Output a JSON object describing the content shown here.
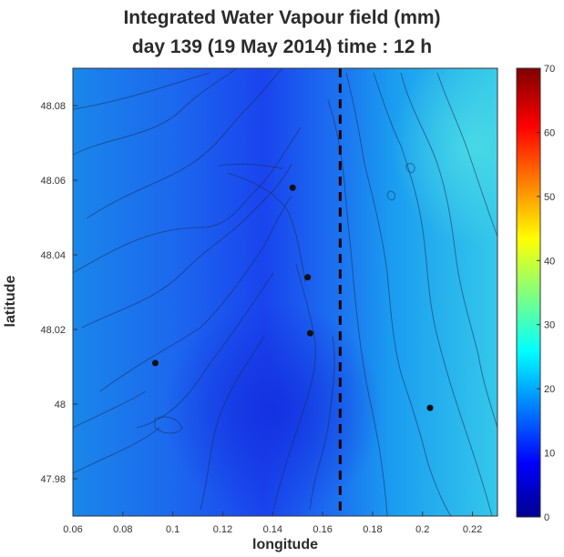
{
  "chart_data": {
    "type": "heatmap",
    "title": "Integrated Water Vapour field  (mm)",
    "subtitle": "day 139 (19 May 2014) time : 12 h",
    "xlabel": "longitude",
    "ylabel": "latitude",
    "xlim": [
      0.06,
      0.23
    ],
    "ylim": [
      47.97,
      48.09
    ],
    "x_ticks": [
      0.06,
      0.08,
      0.1,
      0.12,
      0.14,
      0.16,
      0.18,
      0.2,
      0.22
    ],
    "x_tick_labels": [
      "0.06",
      "0.08",
      "0.1",
      "0.12",
      "0.14",
      "0.16",
      "0.18",
      "0.2",
      "0.22"
    ],
    "y_ticks": [
      47.98,
      48,
      48.02,
      48.04,
      48.06,
      48.08
    ],
    "y_tick_labels": [
      "47.98",
      "48",
      "48.02",
      "48.04",
      "48.06",
      "48.08"
    ],
    "colorbar": {
      "range": [
        0,
        70
      ],
      "ticks": [
        0,
        10,
        20,
        30,
        40,
        50,
        60,
        70
      ],
      "tick_labels": [
        "0",
        "10",
        "20",
        "30",
        "40",
        "50",
        "60",
        "70"
      ],
      "colormap": "jet"
    },
    "stations": [
      {
        "x": 0.093,
        "y": 48.011
      },
      {
        "x": 0.148,
        "y": 48.058
      },
      {
        "x": 0.154,
        "y": 48.034
      },
      {
        "x": 0.155,
        "y": 48.019
      },
      {
        "x": 0.203,
        "y": 47.999
      }
    ],
    "vertical_dashed_line": {
      "x": 0.167
    },
    "grid": false,
    "colors": {
      "low": "#1f3df0",
      "mid": "#1a8cf0",
      "high": "#3fd0e8"
    }
  }
}
